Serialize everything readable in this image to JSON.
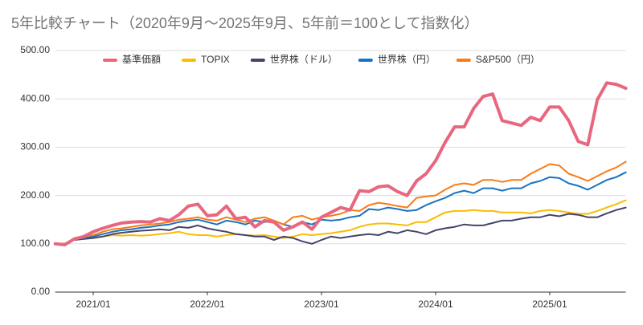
{
  "chart_data": {
    "type": "line",
    "title": "5年比較チャート（2020年9月～2025年9月、5年前＝100として指数化）",
    "x": [
      "2020/09",
      "2020/10",
      "2020/11",
      "2020/12",
      "2021/01",
      "2021/02",
      "2021/03",
      "2021/04",
      "2021/05",
      "2021/06",
      "2021/07",
      "2021/08",
      "2021/09",
      "2021/10",
      "2021/11",
      "2021/12",
      "2022/01",
      "2022/02",
      "2022/03",
      "2022/04",
      "2022/05",
      "2022/06",
      "2022/07",
      "2022/08",
      "2022/09",
      "2022/10",
      "2022/11",
      "2022/12",
      "2023/01",
      "2023/02",
      "2023/03",
      "2023/04",
      "2023/05",
      "2023/06",
      "2023/07",
      "2023/08",
      "2023/09",
      "2023/10",
      "2023/11",
      "2023/12",
      "2024/01",
      "2024/02",
      "2024/03",
      "2024/04",
      "2024/05",
      "2024/06",
      "2024/07",
      "2024/08",
      "2024/09",
      "2024/10",
      "2024/11",
      "2024/12",
      "2025/01",
      "2025/02",
      "2025/03",
      "2025/04",
      "2025/05",
      "2025/06",
      "2025/07",
      "2025/08",
      "2025/09"
    ],
    "xticks": [
      "2021/01",
      "2022/01",
      "2023/01",
      "2024/01",
      "2025/01"
    ],
    "ylim": [
      0,
      500
    ],
    "yticks": [
      {
        "value": 0,
        "label": "0.00"
      },
      {
        "value": 100,
        "label": "100.00"
      },
      {
        "value": 200,
        "label": "200.00"
      },
      {
        "value": 300,
        "label": "300.00"
      },
      {
        "value": 400,
        "label": "400.00"
      },
      {
        "value": 500,
        "label": "500.00"
      }
    ],
    "grid": true,
    "legend": "top",
    "series": [
      {
        "name": "基準価額",
        "color": "#e8677f",
        "values": [
          100,
          98,
          110,
          115,
          125,
          132,
          138,
          143,
          145,
          146,
          145,
          152,
          148,
          160,
          178,
          182,
          158,
          160,
          178,
          152,
          155,
          135,
          148,
          145,
          128,
          135,
          145,
          130,
          155,
          165,
          175,
          170,
          210,
          208,
          218,
          220,
          208,
          200,
          230,
          245,
          272,
          310,
          342,
          342,
          380,
          405,
          410,
          355,
          350,
          345,
          362,
          355,
          383,
          383,
          355,
          312,
          305,
          398,
          433,
          430,
          422
        ]
      },
      {
        "name": "TOPIX",
        "color": "#fbbc04",
        "values": [
          100,
          100,
          108,
          110,
          112,
          115,
          118,
          117,
          118,
          117,
          118,
          120,
          122,
          125,
          120,
          118,
          118,
          115,
          118,
          120,
          118,
          117,
          118,
          115,
          112,
          115,
          120,
          118,
          120,
          122,
          125,
          128,
          135,
          140,
          142,
          142,
          140,
          138,
          145,
          145,
          155,
          165,
          168,
          168,
          170,
          168,
          168,
          165,
          165,
          165,
          163,
          168,
          170,
          168,
          165,
          162,
          162,
          168,
          175,
          182,
          190
        ]
      },
      {
        "name": "世界株（ドル）",
        "color": "#45456a",
        "values": [
          100,
          100,
          108,
          110,
          112,
          115,
          120,
          123,
          125,
          127,
          128,
          130,
          128,
          135,
          133,
          138,
          132,
          128,
          125,
          120,
          118,
          115,
          115,
          108,
          115,
          112,
          105,
          100,
          108,
          115,
          112,
          115,
          118,
          120,
          118,
          125,
          122,
          128,
          125,
          120,
          128,
          132,
          135,
          140,
          138,
          138,
          143,
          148,
          148,
          152,
          155,
          155,
          160,
          157,
          162,
          160,
          155,
          155,
          163,
          170,
          175
        ]
      },
      {
        "name": "世界株（円）",
        "color": "#1a73c0",
        "values": [
          100,
          98,
          110,
          112,
          115,
          120,
          125,
          128,
          130,
          133,
          135,
          138,
          140,
          145,
          148,
          150,
          145,
          140,
          148,
          145,
          140,
          148,
          145,
          148,
          140,
          135,
          145,
          140,
          150,
          148,
          150,
          155,
          158,
          172,
          170,
          175,
          172,
          168,
          170,
          180,
          188,
          195,
          205,
          210,
          205,
          215,
          215,
          210,
          215,
          215,
          225,
          230,
          238,
          236,
          225,
          220,
          212,
          222,
          232,
          238,
          248
        ]
      },
      {
        "name": "S&P500（円）",
        "color": "#fa7b17",
        "values": [
          100,
          98,
          112,
          115,
          118,
          125,
          130,
          132,
          135,
          138,
          140,
          142,
          145,
          150,
          152,
          155,
          150,
          148,
          155,
          150,
          145,
          152,
          155,
          148,
          140,
          155,
          158,
          150,
          155,
          158,
          162,
          170,
          168,
          180,
          185,
          182,
          178,
          175,
          195,
          198,
          200,
          212,
          222,
          225,
          222,
          232,
          232,
          228,
          232,
          232,
          245,
          255,
          265,
          262,
          245,
          238,
          230,
          240,
          250,
          258,
          270
        ]
      }
    ]
  }
}
